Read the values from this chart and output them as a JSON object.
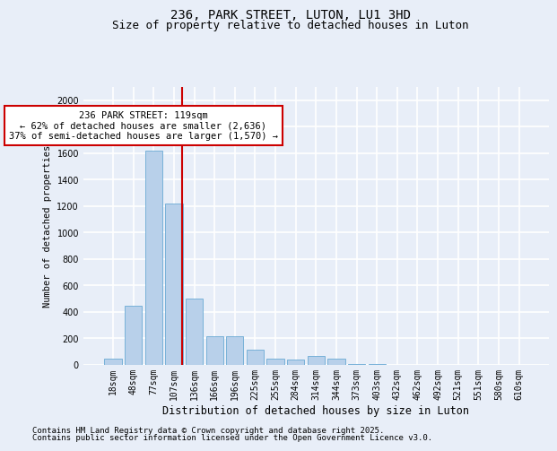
{
  "title1": "236, PARK STREET, LUTON, LU1 3HD",
  "title2": "Size of property relative to detached houses in Luton",
  "xlabel": "Distribution of detached houses by size in Luton",
  "ylabel": "Number of detached properties",
  "categories": [
    "18sqm",
    "48sqm",
    "77sqm",
    "107sqm",
    "136sqm",
    "166sqm",
    "196sqm",
    "225sqm",
    "255sqm",
    "284sqm",
    "314sqm",
    "344sqm",
    "373sqm",
    "403sqm",
    "432sqm",
    "462sqm",
    "492sqm",
    "521sqm",
    "551sqm",
    "580sqm",
    "610sqm"
  ],
  "values": [
    50,
    450,
    1620,
    1220,
    500,
    220,
    220,
    115,
    50,
    40,
    70,
    50,
    10,
    5,
    2,
    2,
    1,
    1,
    1,
    1,
    1
  ],
  "bar_color": "#b8d0ea",
  "bar_edge_color": "#6aaad4",
  "annotation_text": "236 PARK STREET: 119sqm\n← 62% of detached houses are smaller (2,636)\n37% of semi-detached houses are larger (1,570) →",
  "annotation_box_color": "#ffffff",
  "annotation_box_edge_color": "#cc0000",
  "annotation_text_color": "#000000",
  "vline_color": "#cc0000",
  "ylim_max": 2100,
  "yticks": [
    0,
    200,
    400,
    600,
    800,
    1000,
    1200,
    1400,
    1600,
    1800,
    2000
  ],
  "background_color": "#e8eef8",
  "grid_color": "#ffffff",
  "footer1": "Contains HM Land Registry data © Crown copyright and database right 2025.",
  "footer2": "Contains public sector information licensed under the Open Government Licence v3.0.",
  "title1_fontsize": 10,
  "title2_fontsize": 9,
  "xlabel_fontsize": 8.5,
  "ylabel_fontsize": 7.5,
  "tick_fontsize": 7,
  "annotation_fontsize": 7.5,
  "footer_fontsize": 6.5
}
